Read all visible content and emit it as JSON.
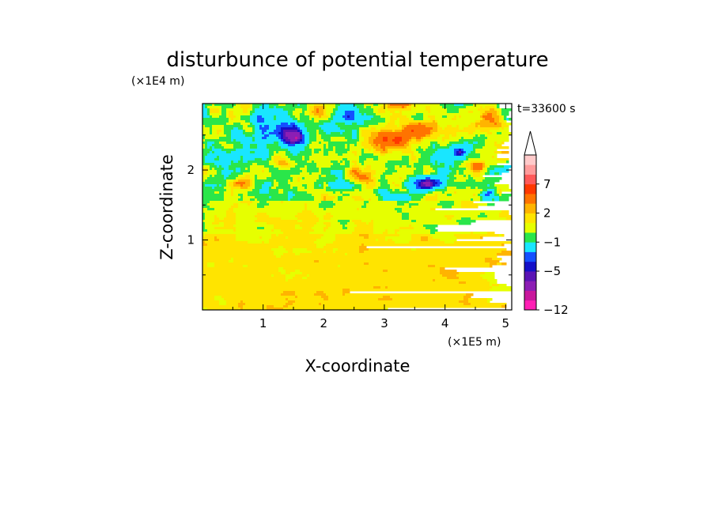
{
  "chart_data": {
    "type": "heatmap",
    "title": "disturbunce of potential temperature",
    "time_label": "t=33600 s",
    "x_axis": {
      "label": "X-coordinate",
      "unit": "(×1E5 m)",
      "range": [
        0,
        5.1
      ],
      "ticks": [
        1,
        2,
        3,
        4,
        5
      ],
      "tick_labels": [
        "1",
        "2",
        "3",
        "4",
        "5"
      ]
    },
    "y_axis": {
      "label": "Z-coordinate",
      "unit": "(×1E4 m)",
      "range": [
        0,
        2.95
      ],
      "ticks": [
        1,
        2
      ],
      "tick_labels": [
        "1",
        "2"
      ]
    },
    "colorbar": {
      "levels": [
        -12,
        -10,
        -8,
        -6,
        -5,
        -4,
        -3,
        -1,
        0,
        1,
        2,
        3,
        5,
        7,
        8,
        9,
        10
      ],
      "colors": [
        "#ff1fb4",
        "#c8189c",
        "#8c1eb4",
        "#5a14b4",
        "#1410c8",
        "#1450ff",
        "#19e6ff",
        "#2ae64a",
        "#e6ff00",
        "#ffe400",
        "#ffb400",
        "#ff7300",
        "#ff3800",
        "#ff5a5a",
        "#ff9c9c",
        "#ffcaca"
      ],
      "tick_values": [
        -12,
        -5,
        -1,
        2,
        7
      ],
      "tick_labels": [
        "−12",
        "−5",
        "−1",
        "2",
        "7"
      ],
      "extend": "max"
    },
    "field_description": "contour-filled field; mostly +1..+3 below z=1, mixed green/yellow 1..1.6, strong cold (blue) and warm (orange) anomalies above 1.6"
  }
}
